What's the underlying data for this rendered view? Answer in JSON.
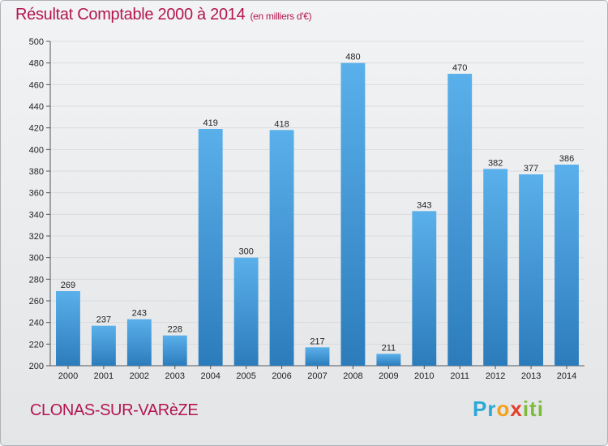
{
  "title": "Résultat Comptable 2000 à 2014",
  "subtitle": "(en milliers d'€)",
  "location": "CLONAS-SUR-VARèZE",
  "brand": "Proxiti",
  "colors": {
    "title": "#b3164f",
    "bar_top": "#5ab0ea",
    "bar_bottom": "#2c7cbc",
    "grid": "#d9dcdf",
    "axis": "#555555"
  },
  "chart_data": {
    "type": "bar",
    "title": "Résultat Comptable 2000 à 2014",
    "subtitle": "(en milliers d'€)",
    "xlabel": "",
    "ylabel": "",
    "categories": [
      "2000",
      "2001",
      "2002",
      "2003",
      "2004",
      "2005",
      "2006",
      "2007",
      "2008",
      "2009",
      "2010",
      "2011",
      "2012",
      "2013",
      "2014"
    ],
    "values": [
      269,
      237,
      243,
      228,
      419,
      300,
      418,
      217,
      480,
      211,
      343,
      470,
      382,
      377,
      386
    ],
    "ylim": [
      200,
      500
    ],
    "yticks": [
      200,
      220,
      240,
      260,
      280,
      300,
      320,
      340,
      360,
      380,
      400,
      420,
      440,
      460,
      480,
      500
    ],
    "grid": true,
    "data_labels": true,
    "legend": "none"
  }
}
